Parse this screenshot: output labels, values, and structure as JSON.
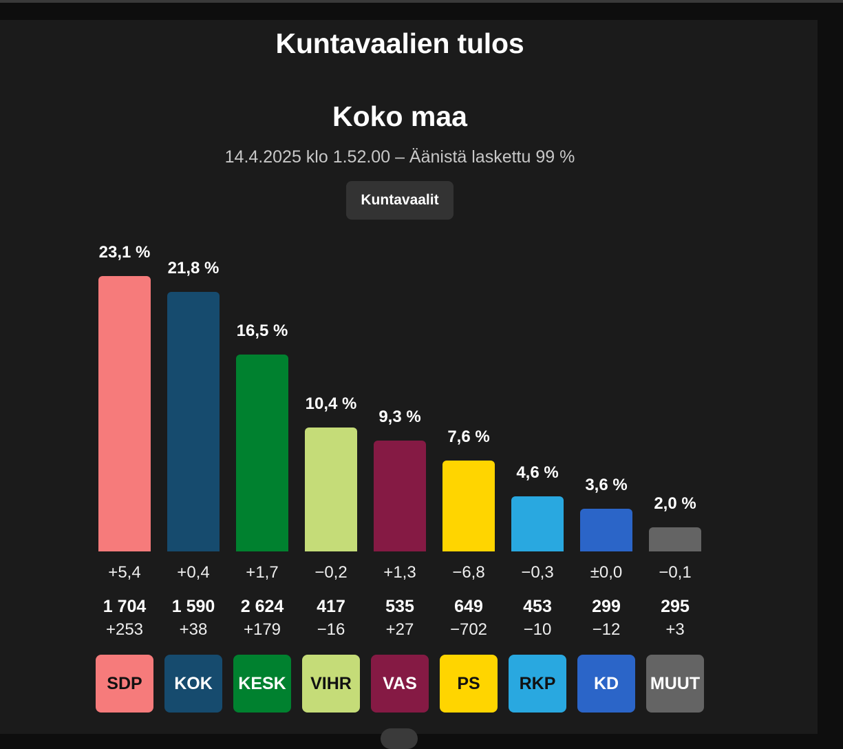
{
  "header": {
    "title": "Kuntavaalien tulos",
    "region": "Koko maa",
    "subtitle": "14.4.2025 klo 1.52.00 – Äänistä laskettu 99 %",
    "tab_label": "Kuntavaalit"
  },
  "chart_data": {
    "type": "bar",
    "categories": [
      "SDP",
      "KOK",
      "KESK",
      "VIHR",
      "VAS",
      "PS",
      "RKP",
      "KD",
      "MUUT"
    ],
    "values": [
      23.1,
      21.8,
      16.5,
      10.4,
      9.3,
      7.6,
      4.6,
      3.6,
      2.0
    ],
    "value_labels": [
      "23,1 %",
      "21,8 %",
      "16,5 %",
      "10,4 %",
      "9,3 %",
      "7,6 %",
      "4,6 %",
      "3,6 %",
      "2,0 %"
    ],
    "changes": [
      "+5,4",
      "+0,4",
      "+1,7",
      "−0,2",
      "+1,3",
      "−6,8",
      "−0,3",
      "±0,0",
      "−0,1"
    ],
    "seats": [
      "1 704",
      "1 590",
      "2 624",
      "417",
      "535",
      "649",
      "453",
      "299",
      "295"
    ],
    "seat_changes": [
      "+253",
      "+38",
      "+179",
      "−16",
      "+27",
      "−702",
      "−10",
      "−12",
      "+3"
    ],
    "colors": [
      "#f67b7b",
      "#164b6e",
      "#00812f",
      "#c5dc78",
      "#851a44",
      "#ffd500",
      "#29a8e0",
      "#2b65c8",
      "#646464"
    ],
    "label_colors": [
      "#111111",
      "#ffffff",
      "#ffffff",
      "#111111",
      "#ffffff",
      "#111111",
      "#111111",
      "#ffffff",
      "#ffffff"
    ],
    "ylim": [
      0,
      23.1
    ]
  }
}
